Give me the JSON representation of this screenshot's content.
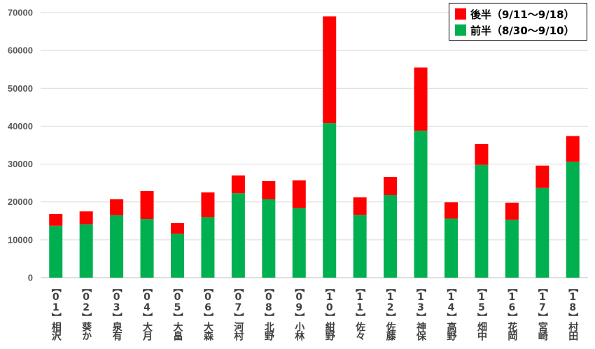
{
  "chart_data": {
    "type": "bar",
    "stacked": true,
    "categories": [
      "【01】相沢",
      "【02】葵か",
      "【03】泉有",
      "【04】大月",
      "【05】大畠",
      "【06】大森",
      "【07】河村",
      "【08】北野",
      "【09】小林",
      "【10】紺野",
      "【11】佐々",
      "【12】佐藤",
      "【13】神保",
      "【14】高野",
      "【15】畑中",
      "【16】花岡",
      "【17】宮崎",
      "【18】村田"
    ],
    "series": [
      {
        "name": "前半（8/30～9/10）",
        "color": "#00b050",
        "values": [
          13700,
          14100,
          16500,
          15500,
          11600,
          16000,
          22300,
          20700,
          18400,
          40800,
          16600,
          21800,
          38800,
          15600,
          29800,
          15300,
          23700,
          30600
        ]
      },
      {
        "name": "後半（9/11～9/18）",
        "color": "#ff0000",
        "values": [
          3100,
          3400,
          4200,
          7400,
          2800,
          6500,
          4700,
          4800,
          7300,
          28200,
          4600,
          4800,
          16700,
          4300,
          5500,
          4500,
          5900,
          6800
        ]
      }
    ],
    "ylim": [
      0,
      70000
    ],
    "yticks": [
      "0",
      "10000",
      "20000",
      "30000",
      "40000",
      "50000",
      "60000",
      "70000"
    ],
    "grid": true,
    "legend_position": "top-right"
  },
  "legend": {
    "items": [
      {
        "label": "後半（9/11～9/18）",
        "color": "#ff0000"
      },
      {
        "label": "前半（8/30～9/10）",
        "color": "#00b050"
      }
    ]
  }
}
